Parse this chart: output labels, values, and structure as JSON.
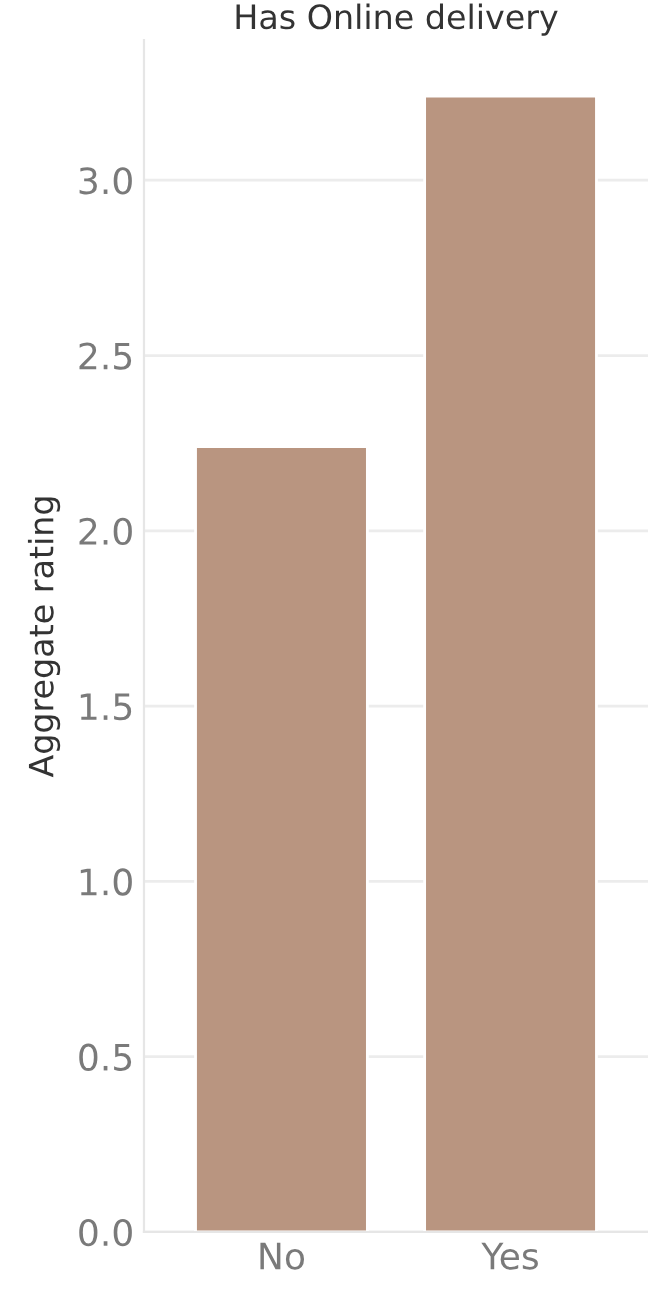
{
  "chart_data": {
    "type": "bar",
    "title": "Has Online delivery",
    "ylabel": "Aggregate rating",
    "categories": [
      "No",
      "Yes"
    ],
    "values": [
      2.24,
      3.24
    ],
    "color": "#b99580",
    "ylim": [
      0,
      3.4
    ],
    "yticks": [
      {
        "value": 0,
        "label": "0.0"
      },
      {
        "value": 0.5,
        "label": "0.5"
      },
      {
        "value": 1.0,
        "label": "1.0"
      },
      {
        "value": 1.5,
        "label": "1.5"
      },
      {
        "value": 2.0,
        "label": "2.0"
      },
      {
        "value": 2.5,
        "label": "2.5"
      },
      {
        "value": 3.0,
        "label": "3.0"
      }
    ],
    "grid": "y"
  }
}
